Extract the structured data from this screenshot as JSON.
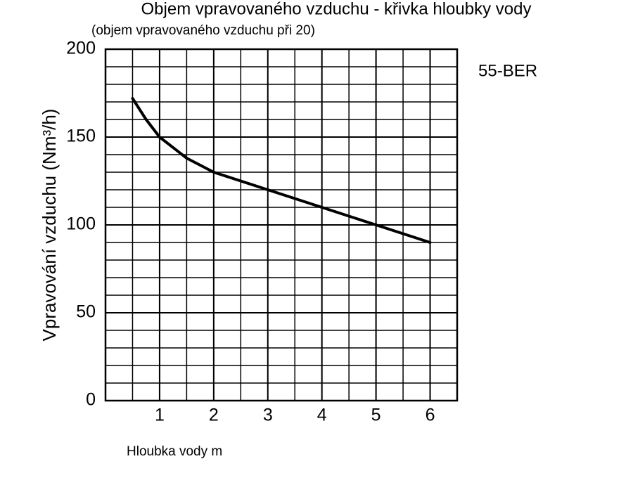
{
  "chart_data": {
    "type": "line",
    "title": "Objem vpravovaného vzduchu - křivka hloubky vody",
    "subtitle": "(objem vpravovaného vzduchu při 20)",
    "annotation": "55-BER",
    "x_label": "Hloubka vody m",
    "y_label": "Vpravování vzduchu (Nm³/h)",
    "x": [
      0.5,
      0.75,
      1,
      1.5,
      2,
      3,
      4,
      5,
      6
    ],
    "values": [
      172,
      160,
      150,
      138,
      130,
      120,
      110,
      100,
      90
    ],
    "color": "#000000",
    "xlim": [
      0,
      6.5
    ],
    "xticks": [
      1,
      2,
      3,
      4,
      5,
      6
    ],
    "ylim": [
      0,
      200
    ],
    "yticks": [
      0,
      50,
      100,
      150,
      200
    ],
    "grid": true
  }
}
